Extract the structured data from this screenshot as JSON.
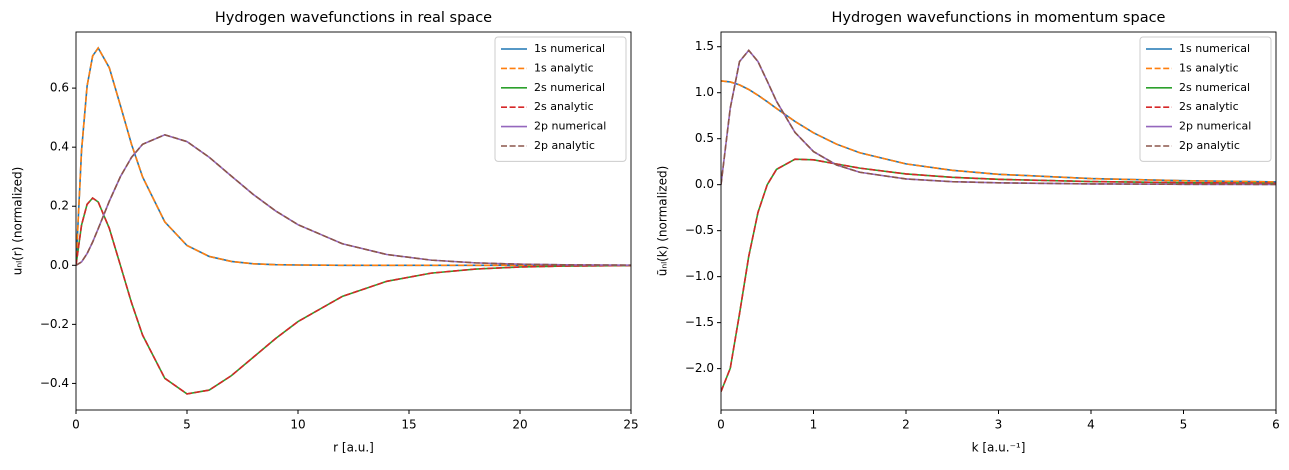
{
  "chart_data": [
    {
      "type": "line",
      "title": "Hydrogen wavefunctions in real space",
      "x_label": "r [a.u.]",
      "y_label": "uₙₗ(r) (normalized)",
      "x": [
        0,
        0.25,
        0.5,
        0.75,
        1,
        1.5,
        2,
        2.5,
        3,
        4,
        5,
        6,
        7,
        8,
        9,
        10,
        12,
        14,
        16,
        18,
        20,
        22,
        25
      ],
      "series": [
        {
          "name": "1s numerical",
          "color": "#1f77b4",
          "linestyle": "solid",
          "values": [
            0,
            0.389,
            0.607,
            0.709,
            0.736,
            0.669,
            0.541,
            0.41,
            0.299,
            0.147,
            0.067,
            0.03,
            0.013,
            0.005,
            0.002,
            0.001,
            0,
            0,
            0,
            0,
            0,
            0,
            0
          ]
        },
        {
          "name": "1s analytic",
          "color": "#ff7f0e",
          "linestyle": "dashed",
          "values": [
            0,
            0.389,
            0.607,
            0.709,
            0.736,
            0.669,
            0.541,
            0.41,
            0.299,
            0.147,
            0.067,
            0.03,
            0.013,
            0.005,
            0.002,
            0.001,
            0,
            0,
            0,
            0,
            0,
            0,
            0
          ]
        },
        {
          "name": "2s numerical",
          "color": "#2ca02c",
          "linestyle": "solid",
          "values": [
            0,
            0.1365,
            0.2065,
            0.2278,
            0.2144,
            0.1252,
            0,
            -0.1266,
            -0.2366,
            -0.3827,
            -0.4354,
            -0.4226,
            -0.3737,
            -0.3106,
            -0.2475,
            -0.1906,
            -0.1052,
            -0.0542,
            -0.0265,
            -0.0126,
            -0.0058,
            -0.0026,
            -0.0008
          ]
        },
        {
          "name": "2s analytic",
          "color": "#d62728",
          "linestyle": "dashed",
          "values": [
            0,
            0.1365,
            0.2065,
            0.2278,
            0.2144,
            0.1252,
            0,
            -0.1266,
            -0.2366,
            -0.3827,
            -0.4354,
            -0.4226,
            -0.3737,
            -0.3106,
            -0.2475,
            -0.1906,
            -0.1052,
            -0.0542,
            -0.0265,
            -0.0126,
            -0.0058,
            -0.0026,
            -0.0008
          ]
        },
        {
          "name": "2p numerical",
          "color": "#9467bd",
          "linestyle": "solid",
          "values": [
            0,
            0.0113,
            0.0397,
            0.0789,
            0.1238,
            0.2169,
            0.3003,
            0.3655,
            0.4098,
            0.4419,
            0.4189,
            0.3659,
            0.302,
            0.2391,
            0.1837,
            0.1375,
            0.0729,
            0.0365,
            0.0175,
            0.0082,
            0.0037,
            0.0016,
            0.0005
          ]
        },
        {
          "name": "2p analytic",
          "color": "#8c564b",
          "linestyle": "dashed",
          "values": [
            0,
            0.0113,
            0.0397,
            0.0789,
            0.1238,
            0.2169,
            0.3003,
            0.3655,
            0.4098,
            0.4419,
            0.4189,
            0.3659,
            0.302,
            0.2391,
            0.1837,
            0.1375,
            0.0729,
            0.0365,
            0.0175,
            0.0082,
            0.0037,
            0.0016,
            0.0005
          ]
        }
      ],
      "xlim": [
        0,
        25
      ],
      "xticks": [
        0,
        5,
        10,
        15,
        20,
        25
      ],
      "ylim": [
        -0.49,
        0.79
      ],
      "yticks": [
        {
          "value": -0.4,
          "label": "−0.4"
        },
        {
          "value": -0.2,
          "label": "−0.2"
        },
        {
          "value": 0,
          "label": "0.0"
        },
        {
          "value": 0.2,
          "label": "0.2"
        },
        {
          "value": 0.4,
          "label": "0.4"
        },
        {
          "value": 0.6,
          "label": "0.6"
        }
      ],
      "grid": false,
      "legend": "upper-right"
    },
    {
      "type": "line",
      "title": "Hydrogen wavefunctions in momentum space",
      "x_label": "k [a.u.⁻¹]",
      "y_label": "ũₙₗ(k) (normalized)",
      "x": [
        0,
        0.1,
        0.2,
        0.3,
        0.4,
        0.5,
        0.6,
        0.8,
        1,
        1.25,
        1.5,
        2,
        2.5,
        3,
        4,
        5,
        6
      ],
      "series": [
        {
          "name": "1s numerical",
          "color": "#1f77b4",
          "linestyle": "solid",
          "values": [
            1.128,
            1.117,
            1.085,
            1.035,
            0.972,
            0.902,
            0.829,
            0.688,
            0.564,
            0.44,
            0.347,
            0.226,
            0.156,
            0.113,
            0.066,
            0.043,
            0.03
          ]
        },
        {
          "name": "1s analytic",
          "color": "#ff7f0e",
          "linestyle": "dashed",
          "values": [
            1.128,
            1.117,
            1.085,
            1.035,
            0.972,
            0.902,
            0.829,
            0.688,
            0.564,
            0.44,
            0.347,
            0.226,
            0.156,
            0.113,
            0.066,
            0.043,
            0.03
          ]
        },
        {
          "name": "2s numerical",
          "color": "#2ca02c",
          "linestyle": "solid",
          "values": [
            -2.25,
            -1.997,
            -1.405,
            -0.779,
            -0.301,
            0,
            0.166,
            0.277,
            0.27,
            0.225,
            0.18,
            0.117,
            0.08,
            0.058,
            0.034,
            0.022,
            0.015
          ]
        },
        {
          "name": "2s analytic",
          "color": "#d62728",
          "linestyle": "dashed",
          "values": [
            -2.25,
            -1.997,
            -1.405,
            -0.779,
            -0.301,
            0,
            0.166,
            0.277,
            0.27,
            0.225,
            0.18,
            0.117,
            0.08,
            0.058,
            0.034,
            0.022,
            0.015
          ]
        },
        {
          "name": "2p numerical",
          "color": "#9467bd",
          "linestyle": "solid",
          "values": [
            0,
            0.832,
            1.338,
            1.46,
            1.338,
            1.125,
            0.907,
            0.568,
            0.36,
            0.214,
            0.135,
            0.062,
            0.033,
            0.02,
            0.0085,
            0.0044,
            0.0026
          ]
        },
        {
          "name": "2p analytic",
          "color": "#8c564b",
          "linestyle": "dashed",
          "values": [
            0,
            0.832,
            1.338,
            1.46,
            1.338,
            1.125,
            0.907,
            0.568,
            0.36,
            0.214,
            0.135,
            0.062,
            0.033,
            0.02,
            0.0085,
            0.0044,
            0.0026
          ]
        }
      ],
      "xlim": [
        0,
        6
      ],
      "xticks": [
        0,
        1,
        2,
        3,
        4,
        5,
        6
      ],
      "ylim": [
        -2.45,
        1.66
      ],
      "yticks": [
        {
          "value": -2,
          "label": "−2.0"
        },
        {
          "value": -1.5,
          "label": "−1.5"
        },
        {
          "value": -1,
          "label": "−1.0"
        },
        {
          "value": -0.5,
          "label": "−0.5"
        },
        {
          "value": 0,
          "label": "0.0"
        },
        {
          "value": 0.5,
          "label": "0.5"
        },
        {
          "value": 1,
          "label": "1.0"
        },
        {
          "value": 1.5,
          "label": "1.5"
        }
      ],
      "grid": false,
      "legend": "upper-right"
    }
  ]
}
